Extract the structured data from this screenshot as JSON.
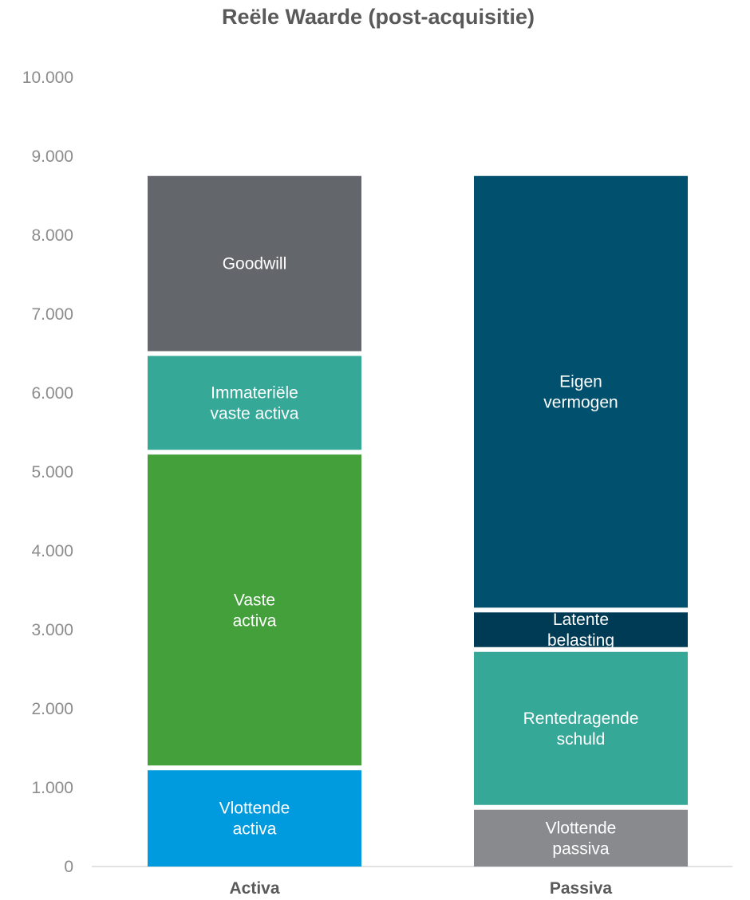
{
  "chart_data": {
    "type": "bar",
    "stacked": true,
    "title": "Reële Waarde (post-acquisitie)",
    "xlabel": "",
    "ylabel": "",
    "ylim": [
      0,
      10000
    ],
    "yticks": [
      0,
      1000,
      2000,
      3000,
      4000,
      5000,
      6000,
      7000,
      8000,
      9000,
      10000
    ],
    "ytick_labels": [
      "0",
      "1.000",
      "2.000",
      "3.000",
      "4.000",
      "5.000",
      "6.000",
      "7.000",
      "8.000",
      "9.000",
      "10.000"
    ],
    "grid": false,
    "legend": "none",
    "categories": [
      "Activa",
      "Passiva"
    ],
    "stacks": [
      {
        "category": "Activa",
        "segments": [
          {
            "label": [
              "Vlottende",
              "activa"
            ],
            "value": 1250,
            "color": "#009ade"
          },
          {
            "label": [
              "Vaste",
              "activa"
            ],
            "value": 4000,
            "color": "#43a03a"
          },
          {
            "label": [
              "Immateriële",
              "vaste activa"
            ],
            "value": 1250,
            "color": "#36a898"
          },
          {
            "label": [
              "Goodwill"
            ],
            "value": 2250,
            "color": "#63666a"
          }
        ]
      },
      {
        "category": "Passiva",
        "segments": [
          {
            "label": [
              "Vlottende",
              "passiva"
            ],
            "value": 750,
            "color": "#898a8d"
          },
          {
            "label": [
              "Rentedragende",
              "schuld"
            ],
            "value": 2000,
            "color": "#36a898"
          },
          {
            "label": [
              "Latente",
              "belasting"
            ],
            "value": 500,
            "color": "#003b55"
          },
          {
            "label": [
              "Eigen",
              "vermogen"
            ],
            "value": 5500,
            "color": "#00506e"
          }
        ]
      }
    ]
  }
}
